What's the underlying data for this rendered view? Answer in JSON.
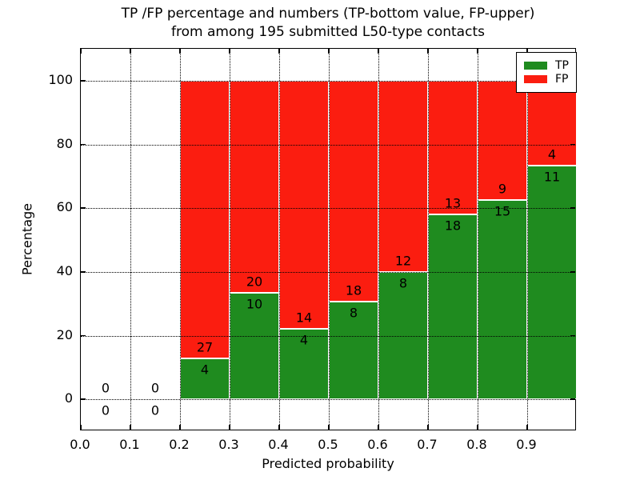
{
  "title": {
    "line1": "TP /FP percentage and numbers (TP-bottom value, FP-upper)",
    "line2": "from among 195 submitted L50-type contacts"
  },
  "axes": {
    "xlabel": "Predicted probability",
    "ylabel": "Percentage"
  },
  "colors": {
    "tp_green": "#1f8b1f",
    "fp_red": "#fb1d10",
    "bar_edge": "#ffffff",
    "grid": "#000000",
    "background": "#ffffff"
  },
  "legend": {
    "items": [
      {
        "label": "TP",
        "color": "#1f8b1f"
      },
      {
        "label": "FP",
        "color": "#fb1d10"
      }
    ]
  },
  "chart_data": {
    "type": "bar",
    "stacked": true,
    "normalized": "each bin stacks to 100%",
    "title": "TP /FP percentage and numbers (TP-bottom value, FP-upper) from among 195 submitted L50-type contacts",
    "xlabel": "Predicted probability",
    "ylabel": "Percentage",
    "xlim": [
      0.0,
      1.0
    ],
    "ylim": [
      -10,
      110
    ],
    "grid": "dotted",
    "legend_position": "upper right",
    "total_contacts": 195,
    "bin_width": 0.1,
    "xticks": [
      {
        "value": 0.0,
        "label": "0.0"
      },
      {
        "value": 0.1,
        "label": "0.1"
      },
      {
        "value": 0.2,
        "label": "0.2"
      },
      {
        "value": 0.3,
        "label": "0.3"
      },
      {
        "value": 0.4,
        "label": "0.4"
      },
      {
        "value": 0.5,
        "label": "0.5"
      },
      {
        "value": 0.6,
        "label": "0.6"
      },
      {
        "value": 0.7,
        "label": "0.7"
      },
      {
        "value": 0.8,
        "label": "0.8"
      },
      {
        "value": 0.9,
        "label": "0.9"
      }
    ],
    "yticks": [
      {
        "value": 0,
        "label": "0"
      },
      {
        "value": 20,
        "label": "20"
      },
      {
        "value": 40,
        "label": "40"
      },
      {
        "value": 60,
        "label": "60"
      },
      {
        "value": 80,
        "label": "80"
      },
      {
        "value": 100,
        "label": "100"
      }
    ],
    "series": [
      {
        "name": "TP",
        "color": "#1f8b1f",
        "counts": [
          0,
          0,
          4,
          10,
          4,
          8,
          8,
          18,
          15,
          11
        ]
      },
      {
        "name": "FP",
        "color": "#fb1d10",
        "counts": [
          0,
          0,
          27,
          20,
          14,
          18,
          12,
          13,
          9,
          4
        ]
      }
    ],
    "bins": [
      {
        "x0": 0.0,
        "x1": 0.1,
        "tp_count": 0,
        "fp_count": 0,
        "tp_pct": 0.0,
        "fp_pct": 0.0
      },
      {
        "x0": 0.1,
        "x1": 0.2,
        "tp_count": 0,
        "fp_count": 0,
        "tp_pct": 0.0,
        "fp_pct": 0.0
      },
      {
        "x0": 0.2,
        "x1": 0.3,
        "tp_count": 4,
        "fp_count": 27,
        "tp_pct": 12.9,
        "fp_pct": 87.1
      },
      {
        "x0": 0.3,
        "x1": 0.4,
        "tp_count": 10,
        "fp_count": 20,
        "tp_pct": 33.3,
        "fp_pct": 66.7
      },
      {
        "x0": 0.4,
        "x1": 0.5,
        "tp_count": 4,
        "fp_count": 14,
        "tp_pct": 22.2,
        "fp_pct": 77.8
      },
      {
        "x0": 0.5,
        "x1": 0.6,
        "tp_count": 8,
        "fp_count": 18,
        "tp_pct": 30.8,
        "fp_pct": 69.2
      },
      {
        "x0": 0.6,
        "x1": 0.7,
        "tp_count": 8,
        "fp_count": 12,
        "tp_pct": 40.0,
        "fp_pct": 60.0
      },
      {
        "x0": 0.7,
        "x1": 0.8,
        "tp_count": 18,
        "fp_count": 13,
        "tp_pct": 58.1,
        "fp_pct": 41.9
      },
      {
        "x0": 0.8,
        "x1": 0.9,
        "tp_count": 15,
        "fp_count": 9,
        "tp_pct": 62.5,
        "fp_pct": 37.5
      },
      {
        "x0": 0.9,
        "x1": 1.0,
        "tp_count": 11,
        "fp_count": 4,
        "tp_pct": 73.3,
        "fp_pct": 26.7
      }
    ]
  }
}
